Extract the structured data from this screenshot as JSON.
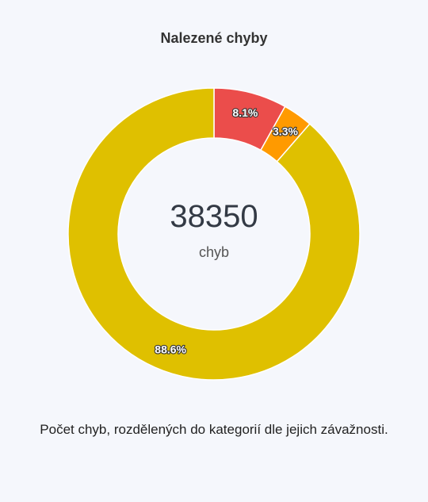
{
  "chart_data": {
    "type": "pie",
    "title": "Nalezené chyby",
    "categories": [
      "",
      "",
      ""
    ],
    "values": [
      8.1,
      3.3,
      88.6
    ],
    "labels": [
      "8.1%",
      "3.3%",
      "88.6%"
    ],
    "colors": [
      "#eb4d4b",
      "#ff9a00",
      "#dfc000"
    ],
    "center": {
      "total": "38350",
      "unit": "chyb"
    },
    "donut": true,
    "legend": "none"
  },
  "caption": "Počet chyb, rozdělených do kategorií dle jejich závažnosti."
}
